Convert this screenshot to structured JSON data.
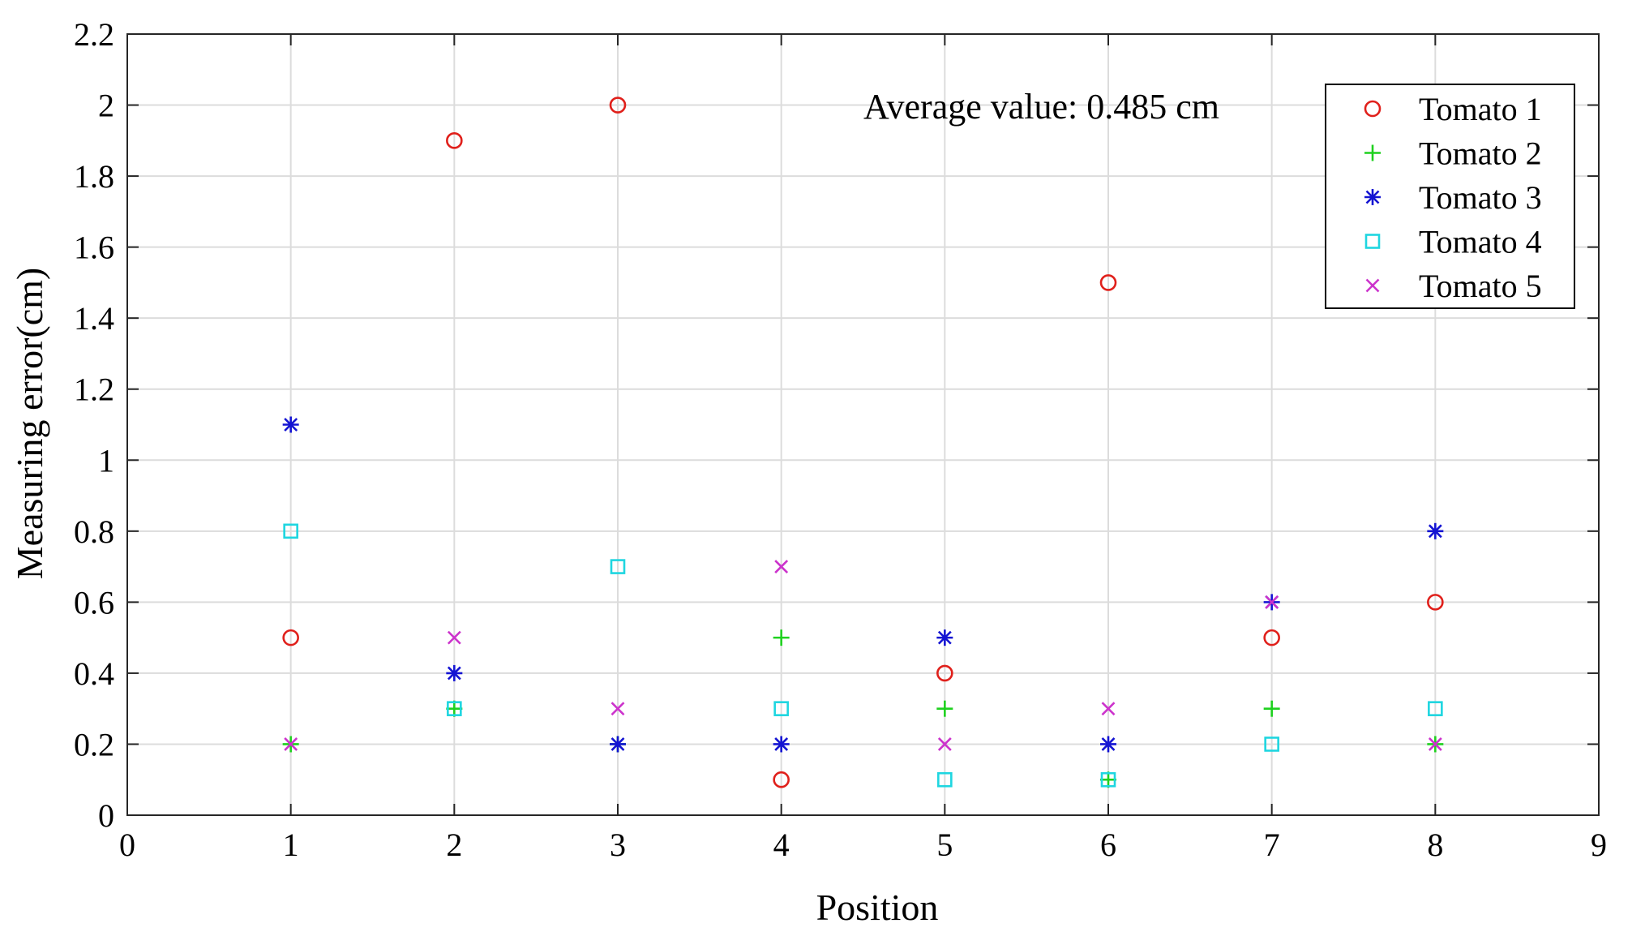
{
  "chart_data": {
    "type": "scatter",
    "title": "",
    "xlabel": "Position",
    "ylabel": "Measuring error(cm)",
    "xlim": [
      0,
      9
    ],
    "ylim": [
      0,
      2.2
    ],
    "xticks": [
      0,
      1,
      2,
      3,
      4,
      5,
      6,
      7,
      8,
      9
    ],
    "xtick_labels": [
      "0",
      "1",
      "2",
      "3",
      "4",
      "5",
      "6",
      "7",
      "8",
      "9"
    ],
    "yticks": [
      0,
      0.2,
      0.4,
      0.6,
      0.8,
      1,
      1.2,
      1.4,
      1.6,
      1.8,
      2,
      2.2
    ],
    "ytick_labels": [
      "0",
      "0.2",
      "0.4",
      "0.6",
      "0.8",
      "1",
      "1.2",
      "1.4",
      "1.6",
      "1.8",
      "2",
      "2.2"
    ],
    "grid": true,
    "legend_position": "top-right",
    "annotation": "Average value: 0.485 cm",
    "x": [
      1,
      2,
      3,
      4,
      5,
      6,
      7,
      8
    ],
    "series": [
      {
        "name": "Tomato 1",
        "marker": "circle",
        "color": "#e0201b",
        "values": [
          0.5,
          1.9,
          2.0,
          0.1,
          0.4,
          1.5,
          0.5,
          0.6
        ]
      },
      {
        "name": "Tomato 2",
        "marker": "plus",
        "color": "#1fd11f",
        "values": [
          0.2,
          0.3,
          0.2,
          0.5,
          0.3,
          0.1,
          0.3,
          0.2
        ]
      },
      {
        "name": "Tomato 3",
        "marker": "asterisk",
        "color": "#1414d2",
        "values": [
          1.1,
          0.4,
          0.2,
          0.2,
          0.5,
          0.2,
          0.6,
          0.8
        ]
      },
      {
        "name": "Tomato 4",
        "marker": "square",
        "color": "#1fd6e0",
        "values": [
          0.8,
          0.3,
          0.7,
          0.3,
          0.1,
          0.1,
          0.2,
          0.3
        ]
      },
      {
        "name": "Tomato 5",
        "marker": "cross",
        "color": "#cc33cc",
        "values": [
          0.2,
          0.5,
          0.3,
          0.7,
          0.2,
          0.3,
          0.6,
          0.2
        ]
      }
    ]
  }
}
